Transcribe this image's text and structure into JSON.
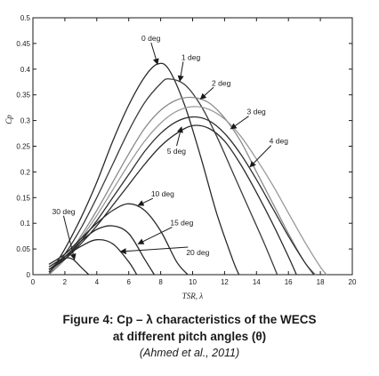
{
  "chart_data": {
    "type": "line",
    "xlabel": "TSR, λ",
    "ylabel": "Cp",
    "xlim": [
      0,
      20
    ],
    "ylim": [
      0,
      0.5
    ],
    "xticks": [
      0,
      2,
      4,
      6,
      8,
      10,
      12,
      14,
      16,
      18,
      20
    ],
    "yticks": [
      0,
      0.05,
      0.1,
      0.15,
      0.2,
      0.25,
      0.3,
      0.35,
      0.4,
      0.45,
      0.5
    ],
    "grid": false,
    "legend": "none (inline curve annotations)",
    "series": [
      {
        "name": "0 deg",
        "x": [
          1.0,
          2.0,
          3.0,
          4.0,
          5.0,
          6.0,
          7.0,
          7.8,
          8.5,
          9.5,
          10.5,
          11.5,
          12.5,
          12.9
        ],
        "y": [
          0.0,
          0.05,
          0.11,
          0.18,
          0.26,
          0.33,
          0.385,
          0.41,
          0.4,
          0.33,
          0.23,
          0.12,
          0.03,
          0.0
        ]
      },
      {
        "name": "1 deg",
        "x": [
          1.0,
          2.0,
          3.0,
          4.0,
          5.0,
          6.0,
          7.0,
          8.0,
          8.5,
          9.5,
          10.5,
          11.5,
          12.5,
          13.5,
          14.5,
          15.3
        ],
        "y": [
          0.0,
          0.04,
          0.09,
          0.15,
          0.215,
          0.28,
          0.335,
          0.372,
          0.381,
          0.37,
          0.33,
          0.27,
          0.2,
          0.13,
          0.06,
          0.0
        ]
      },
      {
        "name": "2 deg",
        "x": [
          1.0,
          2.0,
          3.0,
          4.0,
          5.0,
          6.0,
          7.0,
          8.0,
          9.0,
          10.0,
          11.0,
          12.0,
          13.0,
          14.0,
          15.0,
          16.0,
          17.0,
          17.7
        ],
        "y": [
          0.0,
          0.03,
          0.075,
          0.125,
          0.18,
          0.235,
          0.285,
          0.32,
          0.34,
          0.345,
          0.335,
          0.305,
          0.26,
          0.2,
          0.14,
          0.08,
          0.025,
          0.0
        ]
      },
      {
        "name": "3 deg",
        "x": [
          1.0,
          2.0,
          3.0,
          4.0,
          5.0,
          6.0,
          7.0,
          8.0,
          9.0,
          10.0,
          11.0,
          12.0,
          13.0,
          14.0,
          15.0,
          16.0,
          17.0,
          18.0,
          18.4
        ],
        "y": [
          0.005,
          0.03,
          0.07,
          0.115,
          0.165,
          0.215,
          0.26,
          0.295,
          0.318,
          0.327,
          0.322,
          0.303,
          0.27,
          0.225,
          0.175,
          0.12,
          0.065,
          0.015,
          0.0
        ]
      },
      {
        "name": "4 deg",
        "x": [
          1.0,
          2.0,
          3.0,
          4.0,
          5.0,
          6.0,
          7.0,
          8.0,
          9.0,
          10.0,
          11.0,
          12.0,
          13.0,
          14.0,
          15.0,
          16.0,
          17.0,
          17.6
        ],
        "y": [
          0.01,
          0.03,
          0.065,
          0.105,
          0.15,
          0.195,
          0.24,
          0.275,
          0.298,
          0.307,
          0.3,
          0.275,
          0.235,
          0.185,
          0.13,
          0.075,
          0.025,
          0.0
        ]
      },
      {
        "name": "5 deg",
        "x": [
          1.0,
          2.0,
          3.0,
          4.0,
          5.0,
          6.0,
          7.0,
          8.0,
          9.0,
          10.0,
          11.0,
          12.0,
          13.0,
          14.0,
          15.0,
          16.0,
          16.5
        ],
        "y": [
          0.01,
          0.03,
          0.06,
          0.095,
          0.135,
          0.175,
          0.215,
          0.25,
          0.275,
          0.29,
          0.285,
          0.26,
          0.215,
          0.16,
          0.1,
          0.035,
          0.0
        ]
      },
      {
        "name": "10 deg",
        "x": [
          1.0,
          2.0,
          3.0,
          4.0,
          5.0,
          6.0,
          7.0,
          8.0,
          9.0,
          9.7
        ],
        "y": [
          0.02,
          0.04,
          0.07,
          0.1,
          0.125,
          0.138,
          0.125,
          0.085,
          0.025,
          0.0
        ]
      },
      {
        "name": "15 deg",
        "x": [
          1.0,
          2.0,
          3.0,
          4.0,
          5.0,
          6.0,
          7.0,
          7.6
        ],
        "y": [
          0.01,
          0.035,
          0.065,
          0.088,
          0.095,
          0.08,
          0.03,
          0.0
        ]
      },
      {
        "name": "20 deg",
        "x": [
          1.0,
          2.0,
          3.0,
          4.0,
          5.0,
          6.0,
          6.5
        ],
        "y": [
          0.015,
          0.035,
          0.055,
          0.068,
          0.06,
          0.025,
          0.0
        ]
      },
      {
        "name": "30 deg",
        "x": [
          1.0,
          1.5,
          2.0,
          2.5,
          3.0,
          3.5
        ],
        "y": [
          0.005,
          0.02,
          0.032,
          0.03,
          0.015,
          0.0
        ]
      }
    ],
    "annotations": [
      {
        "text": "0 deg",
        "label": [
          6.8,
          0.455
        ],
        "point": [
          7.8,
          0.41
        ]
      },
      {
        "text": "1 deg",
        "label": [
          9.3,
          0.418
        ],
        "point": [
          9.2,
          0.377
        ]
      },
      {
        "text": "2 deg",
        "label": [
          11.2,
          0.368
        ],
        "point": [
          10.5,
          0.342
        ]
      },
      {
        "text": "3 deg",
        "label": [
          13.4,
          0.312
        ],
        "point": [
          12.4,
          0.284
        ]
      },
      {
        "text": "4 deg",
        "label": [
          14.8,
          0.255
        ],
        "point": [
          13.6,
          0.21
        ]
      },
      {
        "text": "5 deg",
        "label": [
          8.4,
          0.235
        ],
        "point": [
          9.3,
          0.287
        ]
      },
      {
        "text": "10 deg",
        "label": [
          7.4,
          0.152
        ],
        "point": [
          6.6,
          0.135
        ]
      },
      {
        "text": "15 deg",
        "label": [
          8.6,
          0.096
        ],
        "point": [
          6.6,
          0.06
        ]
      },
      {
        "text": "20 deg",
        "label": [
          9.6,
          0.038
        ],
        "point": [
          5.5,
          0.045
        ]
      },
      {
        "text": "30 deg",
        "label": [
          1.2,
          0.118
        ],
        "point": [
          2.6,
          0.03
        ]
      }
    ]
  },
  "caption": {
    "line1": "Figure 4: Cp – λ characteristics of the WECS",
    "line2": "at different pitch angles (θ)",
    "citation": "(Ahmed et al., 2011)"
  },
  "styles": {
    "series_colors": [
      "#2a2a2a",
      "#3a3a3a",
      "#8a8a8a",
      "#999999",
      "#2e2e2e",
      "#2a2a2a",
      "#2a2a2a",
      "#2a2a2a",
      "#2a2a2a",
      "#2a2a2a"
    ],
    "axis_color": "#1a1a1a",
    "text_color": "#1a1a1a"
  }
}
